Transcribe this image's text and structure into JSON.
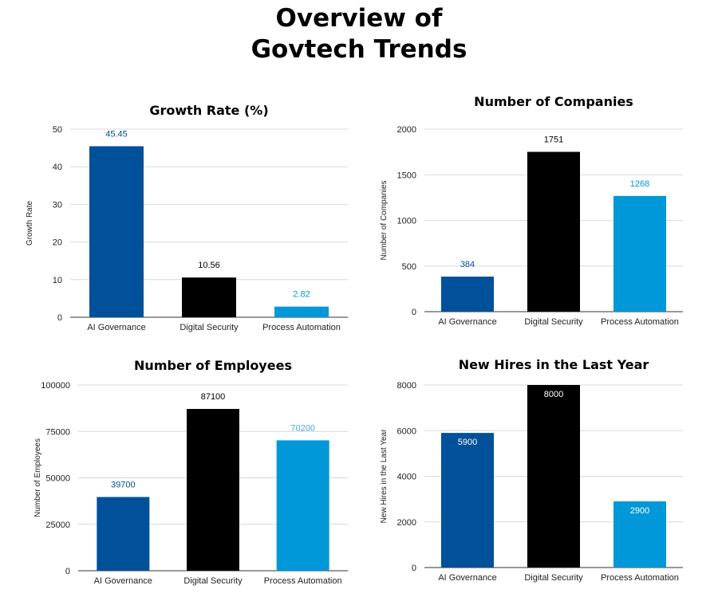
{
  "page": {
    "title_line1": "Overview of",
    "title_line2": "Govtech Trends"
  },
  "colors": {
    "ai": "#00509a",
    "security": "#000000",
    "automation": "#0098d8",
    "grid": "#d9d9d9"
  },
  "chart_data": [
    {
      "type": "bar",
      "title": "Growth Rate (%)",
      "ylabel": "Growth Rate",
      "xlabel": "",
      "categories": [
        "AI Governance",
        "Digital Security",
        "Process Automation"
      ],
      "values": [
        45.45,
        10.56,
        2.82
      ],
      "labels": [
        "45.45",
        "10.56",
        "2.82"
      ],
      "label_position": "above",
      "label_colors": [
        "#00509a",
        "#000000",
        "#0098d8"
      ],
      "ylim": [
        0,
        50
      ],
      "yticks": [
        0,
        10,
        20,
        30,
        40,
        50
      ],
      "ytick_labels": [
        "0",
        "10",
        "20",
        "30",
        "40",
        "50"
      ],
      "grid": true
    },
    {
      "type": "bar",
      "title": "Number of Companies",
      "ylabel": "Number of Companies",
      "xlabel": "",
      "categories": [
        "AI Governance",
        "Digital Security",
        "Process Automation"
      ],
      "values": [
        384,
        1751,
        1268
      ],
      "labels": [
        "384",
        "1751",
        "1268"
      ],
      "label_position": "above",
      "label_colors": [
        "#00509a",
        "#000000",
        "#0098d8"
      ],
      "ylim": [
        0,
        2000
      ],
      "yticks": [
        0,
        500,
        1000,
        1500,
        2000
      ],
      "ytick_labels": [
        "0",
        "500",
        "1000",
        "1500",
        "2000"
      ],
      "grid": true
    },
    {
      "type": "bar",
      "title": "Number of Employees",
      "ylabel": "Number of Employees",
      "xlabel": "",
      "categories": [
        "AI Governance",
        "Digital Security",
        "Process Automation"
      ],
      "values": [
        39700,
        87100,
        70200
      ],
      "labels": [
        "39700",
        "87100",
        "70200"
      ],
      "label_position": "above",
      "label_colors": [
        "#00509a",
        "#000000",
        "#4aa8e0"
      ],
      "ylim": [
        0,
        100000
      ],
      "yticks": [
        0,
        25000,
        50000,
        75000,
        100000
      ],
      "ytick_labels": [
        "0",
        "25000",
        "50000",
        "75000",
        "100000"
      ],
      "grid": true
    },
    {
      "type": "bar",
      "title": "New Hires in the Last Year",
      "ylabel": "New Hires in the Last Year",
      "xlabel": "",
      "categories": [
        "AI Governance",
        "Digital Security",
        "Process Automation"
      ],
      "values": [
        5900,
        8000,
        2900
      ],
      "labels": [
        "5900",
        "8000",
        "2900"
      ],
      "label_position": "inside",
      "label_colors": [
        "#ffffff",
        "#ffffff",
        "#ffffff"
      ],
      "ylim": [
        0,
        8000
      ],
      "yticks": [
        0,
        2000,
        4000,
        6000,
        8000
      ],
      "ytick_labels": [
        "0",
        "2000",
        "4000",
        "6000",
        "8000"
      ],
      "grid": true
    }
  ]
}
